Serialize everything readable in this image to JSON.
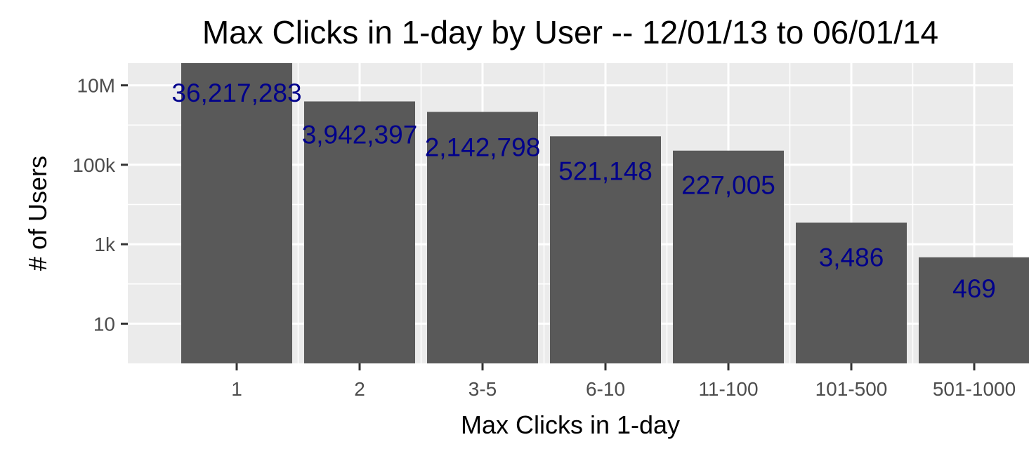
{
  "chart_data": {
    "type": "bar",
    "title": "Max Clicks in 1-day by User -- 12/01/13 to 06/01/14",
    "xlabel": "Max Clicks in 1-day",
    "ylabel": "# of Users",
    "y_scale": "log10",
    "ylim": [
      1,
      36217283
    ],
    "grid": true,
    "y_ticks": [
      {
        "value": 10,
        "label": "10"
      },
      {
        "value": 1000,
        "label": "1k"
      },
      {
        "value": 100000,
        "label": "100k"
      },
      {
        "value": 10000000,
        "label": "10M"
      }
    ],
    "categories": [
      "1",
      "2",
      "3-5",
      "6-10",
      "11-100",
      "101-500",
      "501-1000"
    ],
    "values": [
      36217283,
      3942397,
      2142798,
      521148,
      227005,
      3486,
      469
    ],
    "data_labels": [
      "36,217,283",
      "3,942,397",
      "2,142,798",
      "521,148",
      "227,005",
      "3,486",
      "469"
    ],
    "colors": {
      "bar": "#595959",
      "panel": "#ebebeb",
      "grid": "#ffffff",
      "label": "#00008b"
    }
  }
}
